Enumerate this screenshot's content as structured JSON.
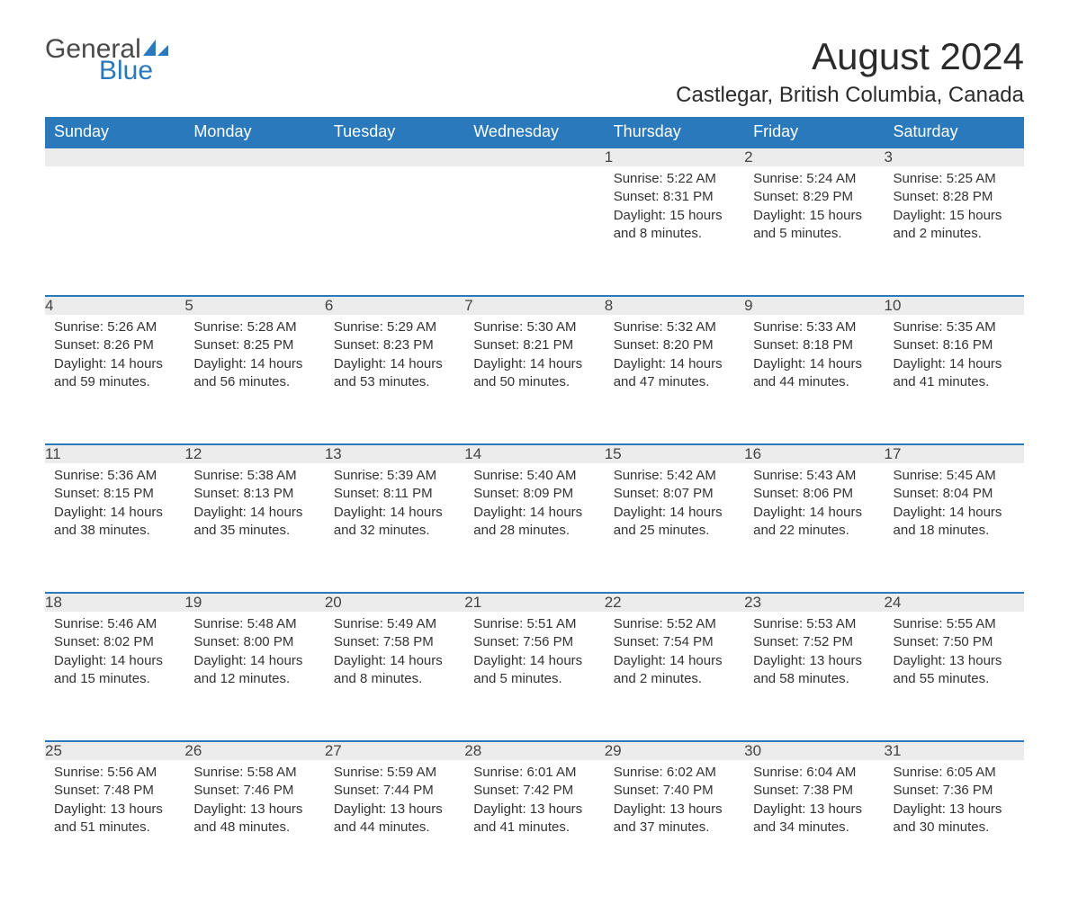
{
  "logo": {
    "word1": "General",
    "word2": "Blue",
    "icon_color": "#2a79bd",
    "text_color_gray": "#4a4a4a",
    "text_color_blue": "#2a79bd"
  },
  "title": "August 2024",
  "location": "Castlegar, British Columbia, Canada",
  "colors": {
    "header_bg": "#2a79bd",
    "header_text": "#ffffff",
    "daynum_bg": "#ececec",
    "daynum_border": "#2a79bd",
    "body_text": "#333333",
    "page_bg": "#ffffff"
  },
  "typography": {
    "title_fontsize": 42,
    "location_fontsize": 24,
    "dayhead_fontsize": 18,
    "daynum_fontsize": 17,
    "content_fontsize": 15
  },
  "day_headers": [
    "Sunday",
    "Monday",
    "Tuesday",
    "Wednesday",
    "Thursday",
    "Friday",
    "Saturday"
  ],
  "weeks": [
    [
      null,
      null,
      null,
      null,
      {
        "n": "1",
        "sunrise": "5:22 AM",
        "sunset": "8:31 PM",
        "daylight": "15 hours and 8 minutes."
      },
      {
        "n": "2",
        "sunrise": "5:24 AM",
        "sunset": "8:29 PM",
        "daylight": "15 hours and 5 minutes."
      },
      {
        "n": "3",
        "sunrise": "5:25 AM",
        "sunset": "8:28 PM",
        "daylight": "15 hours and 2 minutes."
      }
    ],
    [
      {
        "n": "4",
        "sunrise": "5:26 AM",
        "sunset": "8:26 PM",
        "daylight": "14 hours and 59 minutes."
      },
      {
        "n": "5",
        "sunrise": "5:28 AM",
        "sunset": "8:25 PM",
        "daylight": "14 hours and 56 minutes."
      },
      {
        "n": "6",
        "sunrise": "5:29 AM",
        "sunset": "8:23 PM",
        "daylight": "14 hours and 53 minutes."
      },
      {
        "n": "7",
        "sunrise": "5:30 AM",
        "sunset": "8:21 PM",
        "daylight": "14 hours and 50 minutes."
      },
      {
        "n": "8",
        "sunrise": "5:32 AM",
        "sunset": "8:20 PM",
        "daylight": "14 hours and 47 minutes."
      },
      {
        "n": "9",
        "sunrise": "5:33 AM",
        "sunset": "8:18 PM",
        "daylight": "14 hours and 44 minutes."
      },
      {
        "n": "10",
        "sunrise": "5:35 AM",
        "sunset": "8:16 PM",
        "daylight": "14 hours and 41 minutes."
      }
    ],
    [
      {
        "n": "11",
        "sunrise": "5:36 AM",
        "sunset": "8:15 PM",
        "daylight": "14 hours and 38 minutes."
      },
      {
        "n": "12",
        "sunrise": "5:38 AM",
        "sunset": "8:13 PM",
        "daylight": "14 hours and 35 minutes."
      },
      {
        "n": "13",
        "sunrise": "5:39 AM",
        "sunset": "8:11 PM",
        "daylight": "14 hours and 32 minutes."
      },
      {
        "n": "14",
        "sunrise": "5:40 AM",
        "sunset": "8:09 PM",
        "daylight": "14 hours and 28 minutes."
      },
      {
        "n": "15",
        "sunrise": "5:42 AM",
        "sunset": "8:07 PM",
        "daylight": "14 hours and 25 minutes."
      },
      {
        "n": "16",
        "sunrise": "5:43 AM",
        "sunset": "8:06 PM",
        "daylight": "14 hours and 22 minutes."
      },
      {
        "n": "17",
        "sunrise": "5:45 AM",
        "sunset": "8:04 PM",
        "daylight": "14 hours and 18 minutes."
      }
    ],
    [
      {
        "n": "18",
        "sunrise": "5:46 AM",
        "sunset": "8:02 PM",
        "daylight": "14 hours and 15 minutes."
      },
      {
        "n": "19",
        "sunrise": "5:48 AM",
        "sunset": "8:00 PM",
        "daylight": "14 hours and 12 minutes."
      },
      {
        "n": "20",
        "sunrise": "5:49 AM",
        "sunset": "7:58 PM",
        "daylight": "14 hours and 8 minutes."
      },
      {
        "n": "21",
        "sunrise": "5:51 AM",
        "sunset": "7:56 PM",
        "daylight": "14 hours and 5 minutes."
      },
      {
        "n": "22",
        "sunrise": "5:52 AM",
        "sunset": "7:54 PM",
        "daylight": "14 hours and 2 minutes."
      },
      {
        "n": "23",
        "sunrise": "5:53 AM",
        "sunset": "7:52 PM",
        "daylight": "13 hours and 58 minutes."
      },
      {
        "n": "24",
        "sunrise": "5:55 AM",
        "sunset": "7:50 PM",
        "daylight": "13 hours and 55 minutes."
      }
    ],
    [
      {
        "n": "25",
        "sunrise": "5:56 AM",
        "sunset": "7:48 PM",
        "daylight": "13 hours and 51 minutes."
      },
      {
        "n": "26",
        "sunrise": "5:58 AM",
        "sunset": "7:46 PM",
        "daylight": "13 hours and 48 minutes."
      },
      {
        "n": "27",
        "sunrise": "5:59 AM",
        "sunset": "7:44 PM",
        "daylight": "13 hours and 44 minutes."
      },
      {
        "n": "28",
        "sunrise": "6:01 AM",
        "sunset": "7:42 PM",
        "daylight": "13 hours and 41 minutes."
      },
      {
        "n": "29",
        "sunrise": "6:02 AM",
        "sunset": "7:40 PM",
        "daylight": "13 hours and 37 minutes."
      },
      {
        "n": "30",
        "sunrise": "6:04 AM",
        "sunset": "7:38 PM",
        "daylight": "13 hours and 34 minutes."
      },
      {
        "n": "31",
        "sunrise": "6:05 AM",
        "sunset": "7:36 PM",
        "daylight": "13 hours and 30 minutes."
      }
    ]
  ],
  "labels": {
    "sunrise": "Sunrise: ",
    "sunset": "Sunset: ",
    "daylight": "Daylight: "
  }
}
